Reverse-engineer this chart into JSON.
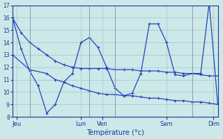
{
  "xlabel": "Température (°c)",
  "background_color": "#cce8e8",
  "grid_color": "#aacccc",
  "line_color": "#2244bb",
  "ylim": [
    8,
    17
  ],
  "yticks": [
    8,
    9,
    10,
    11,
    12,
    13,
    14,
    15,
    16,
    17
  ],
  "xlim": [
    0,
    24
  ],
  "day_ticks_x": [
    0.5,
    8,
    10.5,
    18,
    23.5
  ],
  "day_labels": [
    "Jeu",
    "Lun",
    "Ven",
    "Sam",
    "Dim"
  ],
  "line1_x": [
    0,
    1,
    2,
    3,
    4,
    5,
    6,
    7,
    8,
    9,
    10,
    11,
    12,
    13,
    14,
    15,
    16,
    17,
    18,
    19,
    20,
    21,
    22,
    23,
    24
  ],
  "line1_y": [
    16.0,
    14.8,
    14.0,
    13.5,
    13.0,
    12.5,
    12.2,
    12.0,
    11.9,
    11.9,
    11.9,
    11.9,
    11.8,
    11.8,
    11.8,
    11.7,
    11.7,
    11.7,
    11.6,
    11.6,
    11.5,
    11.5,
    11.4,
    11.3,
    11.3
  ],
  "line2_x": [
    0,
    2,
    4,
    5,
    6,
    7,
    8,
    9,
    10,
    11,
    12,
    13,
    14,
    15,
    16,
    17,
    18,
    19,
    20,
    21,
    22,
    23,
    24
  ],
  "line2_y": [
    13.0,
    11.8,
    11.5,
    11.0,
    10.8,
    10.5,
    10.3,
    10.1,
    9.9,
    9.8,
    9.8,
    9.7,
    9.7,
    9.6,
    9.5,
    9.5,
    9.4,
    9.3,
    9.3,
    9.2,
    9.2,
    9.1,
    9.0
  ],
  "line3_x": [
    0,
    1,
    2,
    3,
    4,
    5,
    6,
    7,
    8,
    9,
    10,
    11,
    12,
    13,
    14,
    15,
    16,
    17,
    18,
    19,
    20,
    21,
    22,
    23,
    24
  ],
  "line3_y": [
    16.0,
    13.5,
    11.7,
    10.5,
    8.3,
    9.0,
    10.8,
    11.5,
    14.0,
    14.4,
    13.6,
    12.0,
    10.3,
    9.7,
    9.9,
    11.5,
    15.5,
    15.5,
    14.0,
    11.4,
    11.3,
    11.5,
    11.5,
    17.2,
    9.0
  ]
}
